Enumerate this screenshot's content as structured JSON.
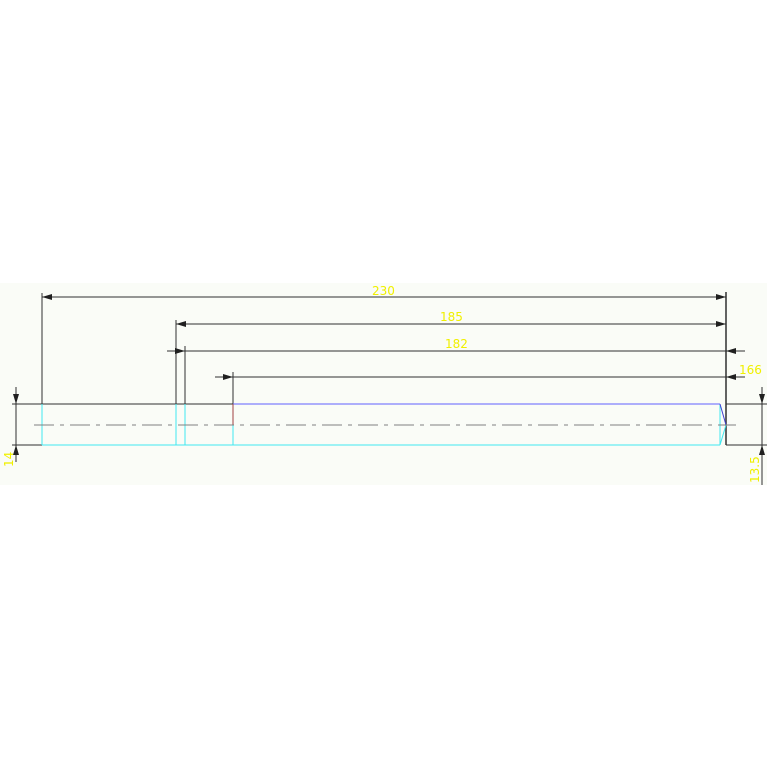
{
  "drawing": {
    "dimensions": {
      "overall_length": "230",
      "length_185": "185",
      "length_182": "182",
      "length_166": "166",
      "left_height": "14",
      "right_height": "13.5"
    },
    "colors": {
      "background_band": "#fafcf7",
      "dimension_line": "#303030",
      "dimension_text": "#f0f000",
      "outline_cyan": "#40e8f0",
      "outline_blue": "#6060ff",
      "accent_red": "#a04040",
      "centerline": "#808080"
    }
  }
}
